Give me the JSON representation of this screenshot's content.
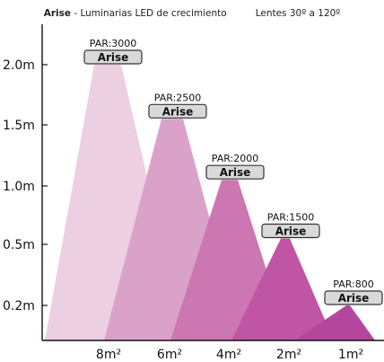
{
  "header": {
    "brand": "Arise",
    "subtitle": " - Luminarias  LED de crecimiento",
    "lens": "Lentes 30º a 120º"
  },
  "chart_data": {
    "type": "area",
    "title": "",
    "y_ticks": [
      "0.2m",
      "0.5m",
      "1.0m",
      "1.5m",
      "2.0m"
    ],
    "y_tick_values": [
      0.2,
      0.5,
      1.0,
      1.5,
      2.0
    ],
    "ylim": [
      0,
      2.5
    ],
    "x_ticks": [
      "8m²",
      "6m²",
      "4m²",
      "2m²",
      "1m²"
    ],
    "series": [
      {
        "height": 2.0,
        "coverage": "8m²",
        "par_label": "PAR:3000",
        "badge": "Arise",
        "color": "#eccfe1"
      },
      {
        "height": 1.55,
        "coverage": "6m²",
        "par_label": "PAR:2500",
        "badge": "Arise",
        "color": "#dba2c9"
      },
      {
        "height": 1.05,
        "coverage": "4m²",
        "par_label": "PAR:2000",
        "badge": "Arise",
        "color": "#cc76b2"
      },
      {
        "height": 0.55,
        "coverage": "2m²",
        "par_label": "PAR:1500",
        "badge": "Arise",
        "color": "#bf55a4"
      },
      {
        "height": 0.2,
        "coverage": "1m²",
        "par_label": "PAR:800",
        "badge": "Arise",
        "color": "#b4479b"
      }
    ],
    "grid": false,
    "colors": {
      "axis": "#111111",
      "badge_fill": "#d9d9d9",
      "badge_stroke": "#333333"
    }
  }
}
